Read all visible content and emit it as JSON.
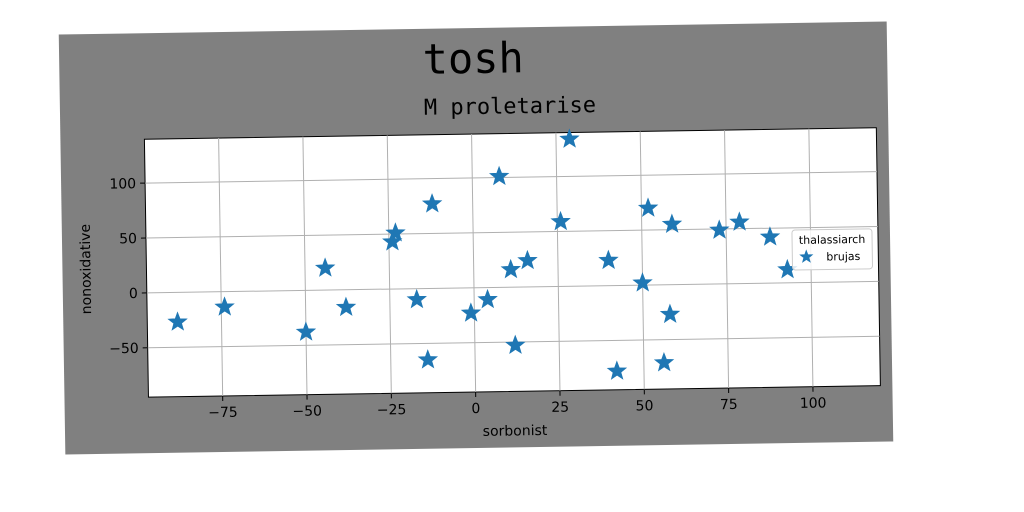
{
  "figure": {
    "suptitle": "tosh",
    "background_color": "#808080"
  },
  "chart_data": {
    "type": "scatter",
    "title": "M proletarise",
    "xlabel": "sorbonist",
    "ylabel": "nonoxidative",
    "xlim": [
      -97,
      120
    ],
    "ylim": [
      -95,
      140
    ],
    "xticks": [
      -75,
      -50,
      -25,
      0,
      25,
      50,
      75,
      100
    ],
    "xtick_labels": [
      "−75",
      "−50",
      "−25",
      "0",
      "25",
      "50",
      "75",
      "100"
    ],
    "yticks": [
      -50,
      0,
      50,
      100
    ],
    "ytick_labels": [
      "−50",
      "0",
      "50",
      "100"
    ],
    "grid": true,
    "legend": {
      "title": "thalassiarch",
      "position": "center-right",
      "entries": [
        "brujas"
      ]
    },
    "series": [
      {
        "name": "brujas",
        "marker": "star",
        "color": "#1f77b4",
        "points": [
          {
            "x": -88,
            "y": -27
          },
          {
            "x": -74,
            "y": -14
          },
          {
            "x": -50,
            "y": -38
          },
          {
            "x": -44,
            "y": 20
          },
          {
            "x": -38,
            "y": -16
          },
          {
            "x": -24,
            "y": 43
          },
          {
            "x": -23,
            "y": 51
          },
          {
            "x": -17,
            "y": -10
          },
          {
            "x": -14,
            "y": -65
          },
          {
            "x": -12,
            "y": 77
          },
          {
            "x": -1,
            "y": -23
          },
          {
            "x": 4,
            "y": -11
          },
          {
            "x": 8,
            "y": 101
          },
          {
            "x": 11,
            "y": 16
          },
          {
            "x": 12,
            "y": -53
          },
          {
            "x": 16,
            "y": 24
          },
          {
            "x": 26,
            "y": 59
          },
          {
            "x": 29,
            "y": 134
          },
          {
            "x": 40,
            "y": 23
          },
          {
            "x": 42,
            "y": -78
          },
          {
            "x": 50,
            "y": 2
          },
          {
            "x": 52,
            "y": 70
          },
          {
            "x": 56,
            "y": -71
          },
          {
            "x": 58,
            "y": -27
          },
          {
            "x": 59,
            "y": 55
          },
          {
            "x": 73,
            "y": 49
          },
          {
            "x": 79,
            "y": 56
          },
          {
            "x": 88,
            "y": 42
          },
          {
            "x": 93,
            "y": 12
          }
        ]
      }
    ]
  }
}
